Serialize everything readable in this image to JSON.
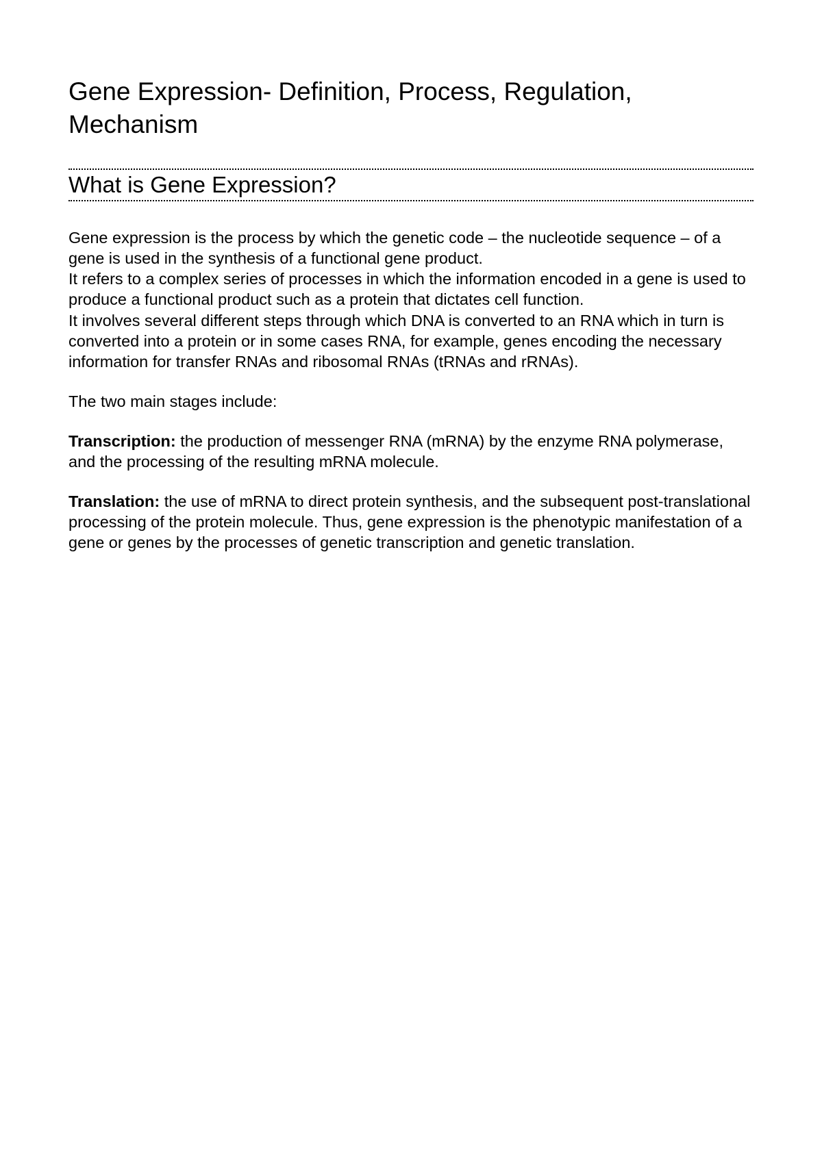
{
  "typography": {
    "title_fontsize": 37,
    "heading_fontsize": 33,
    "body_fontsize": 23.5,
    "font_family": "Verdana, Geneva, sans-serif",
    "text_color": "#000000",
    "background_color": "#ffffff",
    "heading_border_style": "dotted",
    "heading_border_color": "#000000"
  },
  "title": "Gene Expression- Definition, Process, Regulation, Mechanism",
  "heading": "What is Gene Expression?",
  "paragraphs": {
    "intro_p1": "Gene expression is the process by which the genetic code – the nucleotide sequence – of a gene is used in the synthesis of a functional gene product.",
    "intro_p2": "It refers to a complex series of processes in which the information encoded in a gene is used to produce a functional product such as a protein that dictates cell function.",
    "intro_p3": "It involves several different steps through which DNA is converted to an RNA which in turn is converted into a protein or in some cases RNA, for example, genes encoding the necessary information for transfer RNAs and ribosomal RNAs (tRNAs and rRNAs).",
    "stages_intro": "The two main stages include:",
    "transcription_label": "Transcription:",
    "transcription_text": " the production of messenger RNA (mRNA) by the enzyme RNA polymerase, and the processing of the resulting mRNA molecule.",
    "translation_label": "Translation:",
    "translation_text": " the use of mRNA to direct protein synthesis, and the subsequent post-translational processing of the protein molecule. Thus, gene expression is the phenotypic manifestation of a gene or genes by the processes of genetic transcription and genetic translation."
  }
}
